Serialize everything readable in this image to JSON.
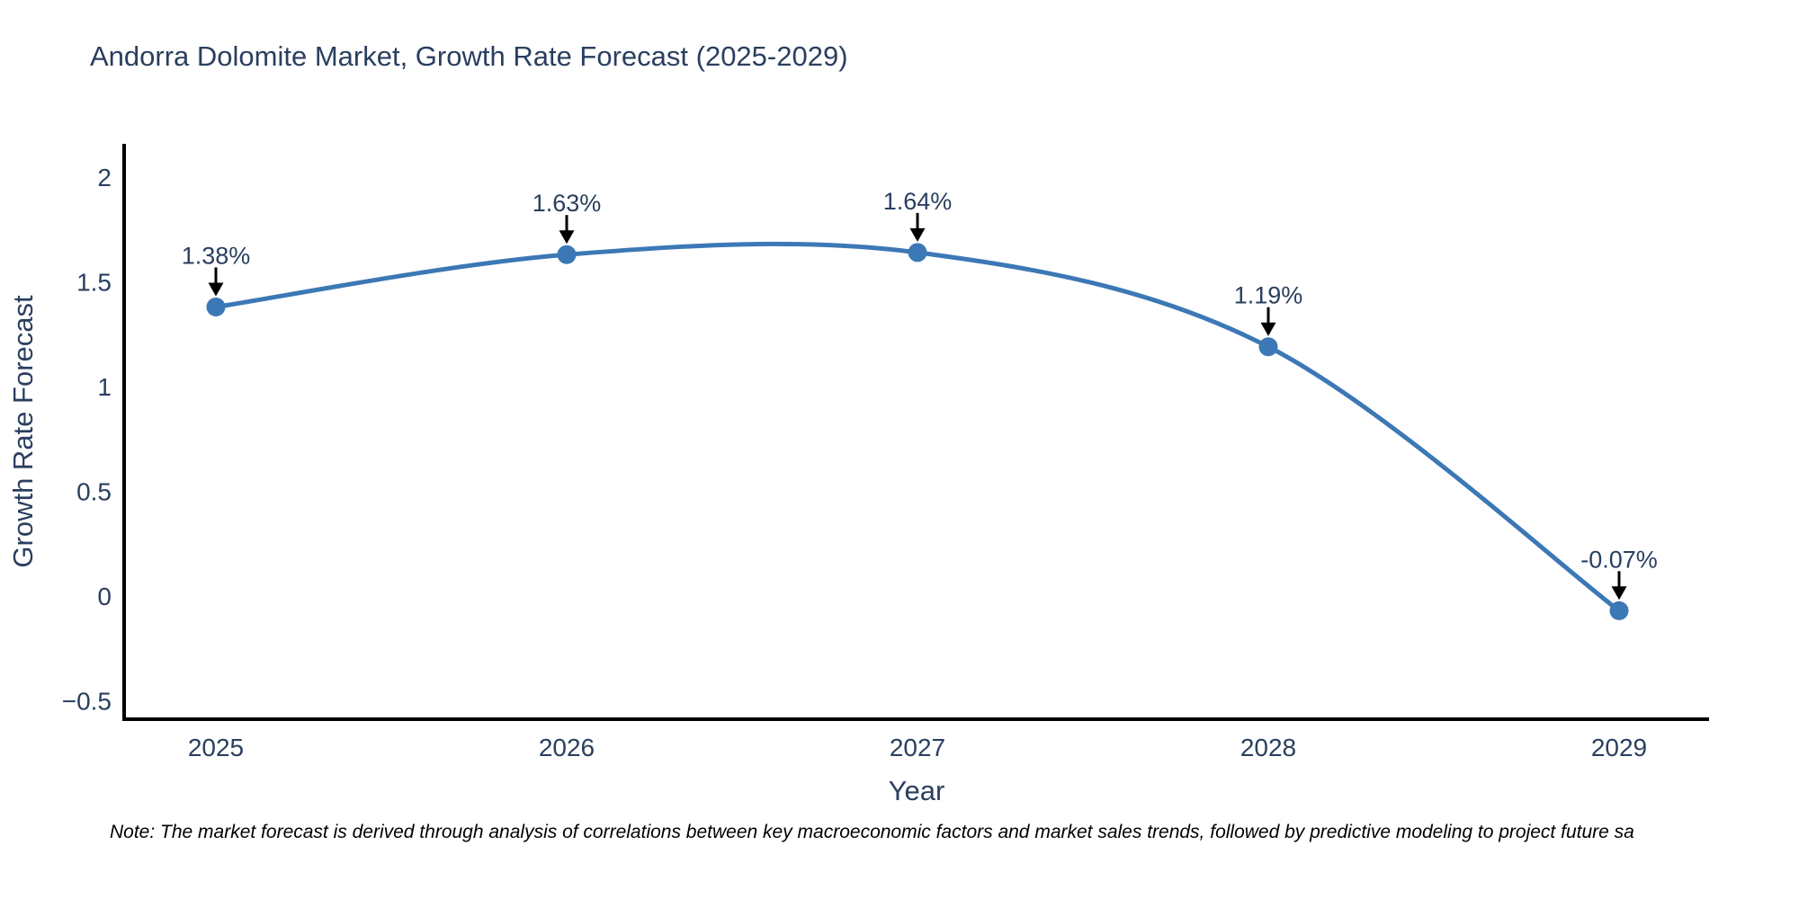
{
  "header": {
    "title": "Andorra Dolomite Market, Growth Rate Forecast (2025-2029)"
  },
  "footer": {
    "note": "Note: The market forecast is derived through analysis of correlations between key macroeconomic factors and market sales trends, followed by predictive modeling to project future sa"
  },
  "chart_data": {
    "type": "line",
    "title": "Andorra Dolomite Market, Growth Rate Forecast (2025-2029)",
    "xlabel": "Year",
    "ylabel": "Growth Rate Forecast",
    "x": [
      2025,
      2026,
      2027,
      2028,
      2029
    ],
    "y": [
      1.38,
      1.63,
      1.64,
      1.19,
      -0.07
    ],
    "point_labels": [
      "1.38%",
      "1.63%",
      "1.64%",
      "1.19%",
      "-0.07%"
    ],
    "xticks": [
      {
        "label": "2025",
        "value": 2025
      },
      {
        "label": "2026",
        "value": 2026
      },
      {
        "label": "2027",
        "value": 2027
      },
      {
        "label": "2028",
        "value": 2028
      },
      {
        "label": "2029",
        "value": 2029
      }
    ],
    "yticks": [
      {
        "label": "2",
        "value": 2
      },
      {
        "label": "1.5",
        "value": 1.5
      },
      {
        "label": "1",
        "value": 1
      },
      {
        "label": "0.5",
        "value": 0.5
      },
      {
        "label": "0",
        "value": 0
      },
      {
        "label": "−0.5",
        "value": -0.5
      }
    ],
    "xlim": [
      2024.74,
      2029.26
    ],
    "ylim": [
      -0.59,
      2.16
    ],
    "line_shape": "spline",
    "grid": false,
    "legend": "none",
    "colors": {
      "line": "#3c78b5",
      "marker": "#3c78b5",
      "axis": "#000000",
      "tick_text": "#2a3f5f",
      "axis_title_text": "#2a3f5f",
      "annotation_text": "#2a3f5f",
      "annotation_arrow": "#000000",
      "background": "#ffffff"
    }
  }
}
